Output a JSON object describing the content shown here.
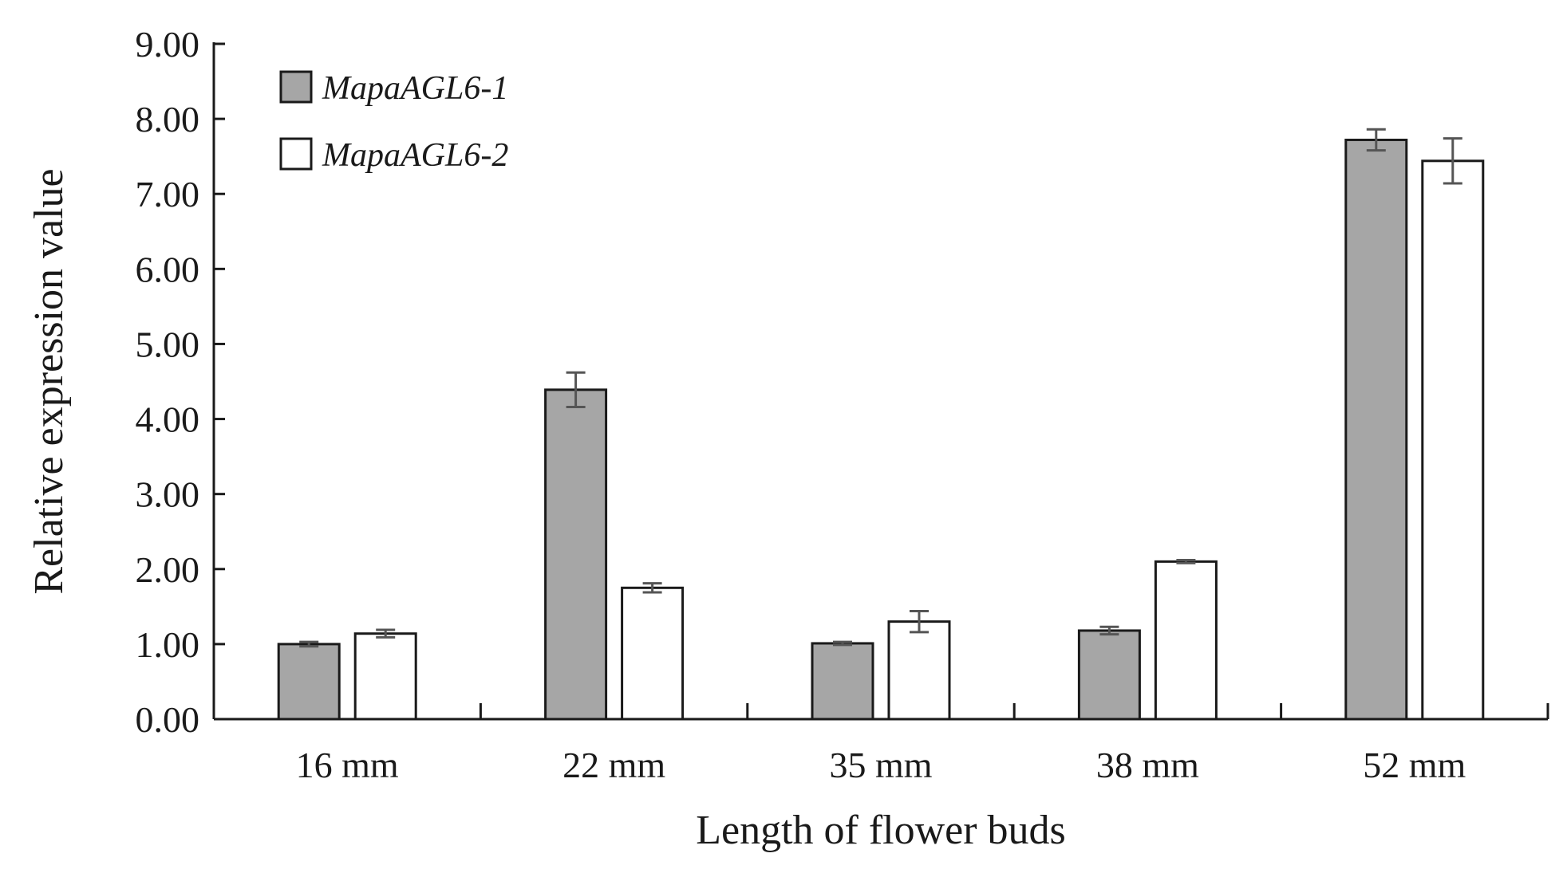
{
  "chart_data": {
    "type": "bar",
    "title": "",
    "xlabel": "Length of flower buds",
    "ylabel": "Relative expression value",
    "ylim": [
      0,
      9
    ],
    "yticks": [
      "0.00",
      "1.00",
      "2.00",
      "3.00",
      "4.00",
      "5.00",
      "6.00",
      "7.00",
      "8.00",
      "9.00"
    ],
    "categories": [
      "16 mm",
      "22 mm",
      "35 mm",
      "38 mm",
      "52 mm"
    ],
    "legend_position": "top-left",
    "series": [
      {
        "name": "MapaAGL6-1",
        "color": "#a6a6a6",
        "values": [
          1.0,
          4.39,
          1.01,
          1.18,
          7.72
        ],
        "errors": [
          0.03,
          0.23,
          0.02,
          0.05,
          0.14
        ]
      },
      {
        "name": "MapaAGL6-2",
        "color": "#ffffff",
        "values": [
          1.14,
          1.75,
          1.3,
          2.1,
          7.44
        ],
        "errors": [
          0.05,
          0.06,
          0.14,
          0.02,
          0.3
        ]
      }
    ]
  }
}
